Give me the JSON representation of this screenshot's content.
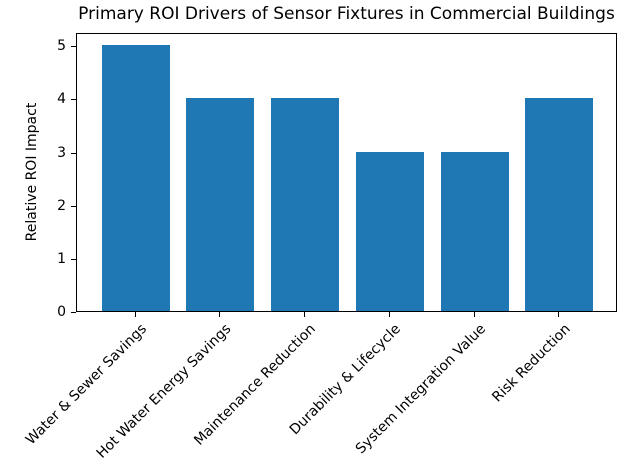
{
  "chart_data": {
    "type": "bar",
    "title": "Primary ROI Drivers of Sensor Fixtures in Commercial Buildings",
    "xlabel": "",
    "ylabel": "Relative ROI Impact",
    "categories": [
      "Water & Sewer Savings",
      "Hot Water Energy Savings",
      "Maintenance Reduction",
      "Durability & Lifecycle",
      "System Integration Value",
      "Risk Reduction"
    ],
    "values": [
      5,
      4,
      4,
      3,
      3,
      4
    ],
    "yticks": [
      0,
      1,
      2,
      3,
      4,
      5
    ],
    "ylim": [
      0,
      5.25
    ],
    "bar_color": "#1f77b4",
    "grid": false,
    "legend_position": "none"
  }
}
